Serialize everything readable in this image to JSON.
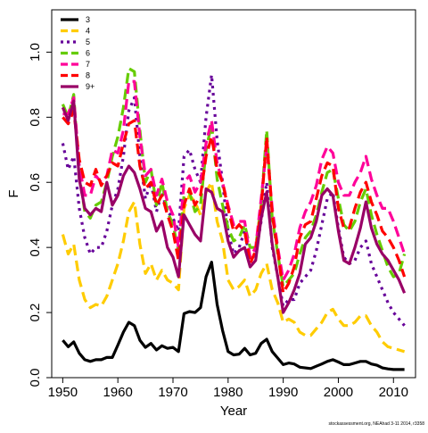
{
  "chart_data": {
    "type": "line",
    "title": "",
    "xlabel": "Year",
    "ylabel": "F",
    "xlim": [
      1948,
      2014
    ],
    "ylim": [
      0,
      1.13
    ],
    "xticks": [
      1950,
      1960,
      1970,
      1980,
      1990,
      2000,
      2010
    ],
    "yticks": [
      0.0,
      0.2,
      0.4,
      0.6,
      0.8,
      1.0
    ],
    "ytick_labels": [
      "0.0",
      "0.2",
      "0.4",
      "0.6",
      "0.8",
      "1.0"
    ],
    "grid": false,
    "legend_position": "top-left",
    "footnote": "stockassessment.org, NEAhad 3-11 2014, r3358",
    "x": [
      1950,
      1951,
      1952,
      1953,
      1954,
      1955,
      1956,
      1957,
      1958,
      1959,
      1960,
      1961,
      1962,
      1963,
      1964,
      1965,
      1966,
      1967,
      1968,
      1969,
      1970,
      1971,
      1972,
      1973,
      1974,
      1975,
      1976,
      1977,
      1978,
      1979,
      1980,
      1981,
      1982,
      1983,
      1984,
      1985,
      1986,
      1987,
      1988,
      1989,
      1990,
      1991,
      1992,
      1993,
      1994,
      1995,
      1996,
      1997,
      1998,
      1999,
      2000,
      2001,
      2002,
      2003,
      2004,
      2005,
      2006,
      2007,
      2008,
      2009,
      2010,
      2011,
      2012
    ],
    "series": [
      {
        "name": "3",
        "color": "#000000",
        "dash": "solid",
        "width": 3.2,
        "values": [
          0.115,
          0.095,
          0.11,
          0.075,
          0.055,
          0.05,
          0.055,
          0.055,
          0.062,
          0.062,
          0.1,
          0.14,
          0.17,
          0.16,
          0.115,
          0.093,
          0.105,
          0.085,
          0.098,
          0.09,
          0.093,
          0.08,
          0.197,
          0.203,
          0.2,
          0.215,
          0.31,
          0.355,
          0.225,
          0.145,
          0.08,
          0.07,
          0.072,
          0.09,
          0.07,
          0.075,
          0.105,
          0.118,
          0.08,
          0.06,
          0.04,
          0.045,
          0.042,
          0.032,
          0.03,
          0.028,
          0.035,
          0.042,
          0.05,
          0.055,
          0.048,
          0.04,
          0.04,
          0.045,
          0.05,
          0.05,
          0.042,
          0.038,
          0.03,
          0.027,
          0.025,
          0.025,
          0.025
        ]
      },
      {
        "name": "4",
        "color": "#FFCC00",
        "dash": "dashed",
        "width": 3.2,
        "values": [
          0.44,
          0.38,
          0.41,
          0.3,
          0.24,
          0.215,
          0.225,
          0.22,
          0.25,
          0.3,
          0.35,
          0.42,
          0.51,
          0.54,
          0.41,
          0.32,
          0.35,
          0.3,
          0.33,
          0.3,
          0.29,
          0.27,
          0.52,
          0.56,
          0.54,
          0.5,
          0.57,
          0.6,
          0.48,
          0.42,
          0.3,
          0.27,
          0.28,
          0.3,
          0.25,
          0.27,
          0.32,
          0.35,
          0.27,
          0.23,
          0.17,
          0.18,
          0.17,
          0.14,
          0.13,
          0.13,
          0.15,
          0.17,
          0.2,
          0.21,
          0.18,
          0.16,
          0.16,
          0.17,
          0.19,
          0.19,
          0.16,
          0.14,
          0.11,
          0.095,
          0.09,
          0.085,
          0.08
        ]
      },
      {
        "name": "5",
        "color": "#660099",
        "dash": "dotted",
        "width": 3.2,
        "values": [
          0.72,
          0.64,
          0.68,
          0.52,
          0.43,
          0.38,
          0.4,
          0.4,
          0.45,
          0.53,
          0.58,
          0.68,
          0.82,
          0.86,
          0.68,
          0.55,
          0.6,
          0.51,
          0.57,
          0.51,
          0.49,
          0.45,
          0.68,
          0.7,
          0.64,
          0.6,
          0.8,
          0.93,
          0.73,
          0.6,
          0.45,
          0.38,
          0.4,
          0.45,
          0.36,
          0.38,
          0.48,
          0.6,
          0.4,
          0.31,
          0.22,
          0.24,
          0.24,
          0.29,
          0.31,
          0.33,
          0.39,
          0.47,
          0.55,
          0.57,
          0.46,
          0.37,
          0.35,
          0.36,
          0.4,
          0.42,
          0.35,
          0.31,
          0.27,
          0.23,
          0.2,
          0.18,
          0.16
        ]
      },
      {
        "name": "6",
        "color": "#66CC00",
        "dash": "dashed",
        "width": 3.2,
        "values": [
          0.84,
          0.8,
          0.87,
          0.62,
          0.51,
          0.49,
          0.53,
          0.54,
          0.6,
          0.68,
          0.74,
          0.83,
          0.95,
          0.94,
          0.76,
          0.6,
          0.64,
          0.53,
          0.6,
          0.51,
          0.47,
          0.39,
          0.56,
          0.57,
          0.51,
          0.53,
          0.7,
          0.78,
          0.61,
          0.53,
          0.46,
          0.42,
          0.43,
          0.47,
          0.4,
          0.4,
          0.53,
          0.76,
          0.49,
          0.38,
          0.28,
          0.3,
          0.32,
          0.38,
          0.43,
          0.45,
          0.5,
          0.57,
          0.63,
          0.64,
          0.55,
          0.47,
          0.45,
          0.48,
          0.54,
          0.58,
          0.5,
          0.44,
          0.39,
          0.34,
          0.31,
          0.32,
          0.38
        ]
      },
      {
        "name": "7",
        "color": "#FF0099",
        "dash": "dashed",
        "width": 3.2,
        "values": [
          0.81,
          0.81,
          0.86,
          0.65,
          0.56,
          0.56,
          0.62,
          0.6,
          0.62,
          0.7,
          0.69,
          0.76,
          0.91,
          0.91,
          0.74,
          0.62,
          0.64,
          0.56,
          0.61,
          0.54,
          0.5,
          0.4,
          0.6,
          0.62,
          0.57,
          0.6,
          0.72,
          0.79,
          0.66,
          0.6,
          0.53,
          0.47,
          0.48,
          0.48,
          0.37,
          0.4,
          0.55,
          0.71,
          0.52,
          0.4,
          0.3,
          0.33,
          0.38,
          0.46,
          0.51,
          0.54,
          0.59,
          0.67,
          0.71,
          0.69,
          0.6,
          0.56,
          0.56,
          0.6,
          0.63,
          0.68,
          0.61,
          0.56,
          0.52,
          0.52,
          0.48,
          0.43,
          0.38
        ]
      },
      {
        "name": "8",
        "color": "#FF0000",
        "dash": "dashed",
        "width": 3.2,
        "values": [
          0.8,
          0.78,
          0.82,
          0.67,
          0.6,
          0.59,
          0.64,
          0.59,
          0.62,
          0.66,
          0.65,
          0.72,
          0.78,
          0.79,
          0.65,
          0.58,
          0.6,
          0.53,
          0.56,
          0.5,
          0.45,
          0.36,
          0.53,
          0.58,
          0.53,
          0.56,
          0.68,
          0.74,
          0.64,
          0.6,
          0.52,
          0.45,
          0.47,
          0.45,
          0.35,
          0.39,
          0.52,
          0.74,
          0.5,
          0.39,
          0.26,
          0.29,
          0.34,
          0.43,
          0.47,
          0.48,
          0.55,
          0.62,
          0.66,
          0.65,
          0.52,
          0.46,
          0.46,
          0.52,
          0.57,
          0.6,
          0.54,
          0.5,
          0.45,
          0.43,
          0.4,
          0.36,
          0.31
        ]
      },
      {
        "name": "9+",
        "color": "#990066",
        "dash": "solid",
        "width": 3.2,
        "values": [
          0.83,
          0.79,
          0.85,
          0.61,
          0.52,
          0.5,
          0.52,
          0.51,
          0.6,
          0.53,
          0.56,
          0.62,
          0.65,
          0.63,
          0.58,
          0.52,
          0.51,
          0.45,
          0.48,
          0.4,
          0.37,
          0.31,
          0.5,
          0.47,
          0.44,
          0.42,
          0.58,
          0.57,
          0.52,
          0.51,
          0.42,
          0.37,
          0.39,
          0.4,
          0.34,
          0.36,
          0.49,
          0.57,
          0.41,
          0.31,
          0.2,
          0.23,
          0.27,
          0.32,
          0.41,
          0.43,
          0.48,
          0.56,
          0.58,
          0.56,
          0.45,
          0.36,
          0.35,
          0.4,
          0.46,
          0.54,
          0.46,
          0.41,
          0.38,
          0.36,
          0.33,
          0.3,
          0.26
        ]
      }
    ]
  }
}
